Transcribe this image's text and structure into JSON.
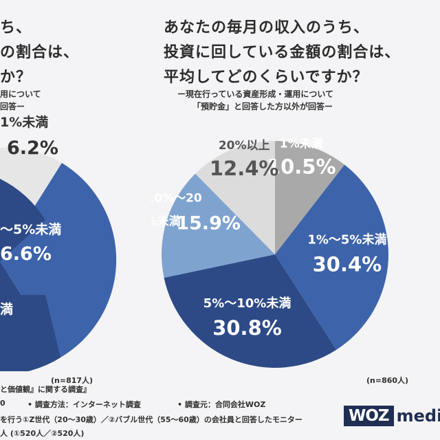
{
  "left_panel": {
    "question_fragments": [
      "ち、",
      "の割合は、",
      "か？"
    ],
    "sub_fragments": [
      "用について",
      "回答ー"
    ],
    "slice_labels": [
      {
        "label": "1%未満",
        "value": "6.2%"
      },
      {
        "label": "～5%未満",
        "value": "6.6%"
      },
      {
        "label": "満",
        "value": ""
      }
    ],
    "n_label": "(n=817人)",
    "colors": {
      "dark": "#2d4a86",
      "mid": "#3d63aa",
      "light": "#e6e6e6"
    }
  },
  "right_panel": {
    "question_lines": [
      "あなたの毎月の収入のうち、",
      "投資に回している金額の割合は、",
      "平均してどのくらいですか？"
    ],
    "sub_lines": [
      "ー現在行っている資産形成・運用について",
      "「預貯金」と回答した方以外が回答ー"
    ],
    "n_label": "(n=860人)"
  },
  "chart_data": [
    {
      "type": "pie",
      "title": "あなたの毎月の収入のうち、投資に回している金額の割合は、平均してどのくらいですか？",
      "categories": [
        "1%未満",
        "1%～5%未満",
        "5%～10%未満",
        "10%～20%未満",
        "20%以上"
      ],
      "values": [
        10.5,
        30.4,
        30.8,
        15.9,
        12.4
      ],
      "value_labels": [
        "10.5%",
        "30.4%",
        "30.8%",
        "15.9%",
        "12.4%"
      ],
      "colors": [
        "#a9a9a9",
        "#3d63aa",
        "#2d4a86",
        "#7fa3cf",
        "#dcdcdc"
      ],
      "start_angle_deg": 0,
      "direction": "clockwise"
    }
  ],
  "footer": {
    "line1_left": "と価値観』に関する調査』",
    "line2_left": "0",
    "line2_method": "• 調査方法：インターネット調査",
    "line2_org": "• 調査元：合同会社WOZ",
    "line3": "を行う①Z世代（20～30歳）／②バブル世代（55～60歳）の会社員と回答したモニター",
    "line4": "人 (①520人／②520人)"
  },
  "logo": {
    "box_text": "WOZ",
    "suffix_text": "media"
  }
}
